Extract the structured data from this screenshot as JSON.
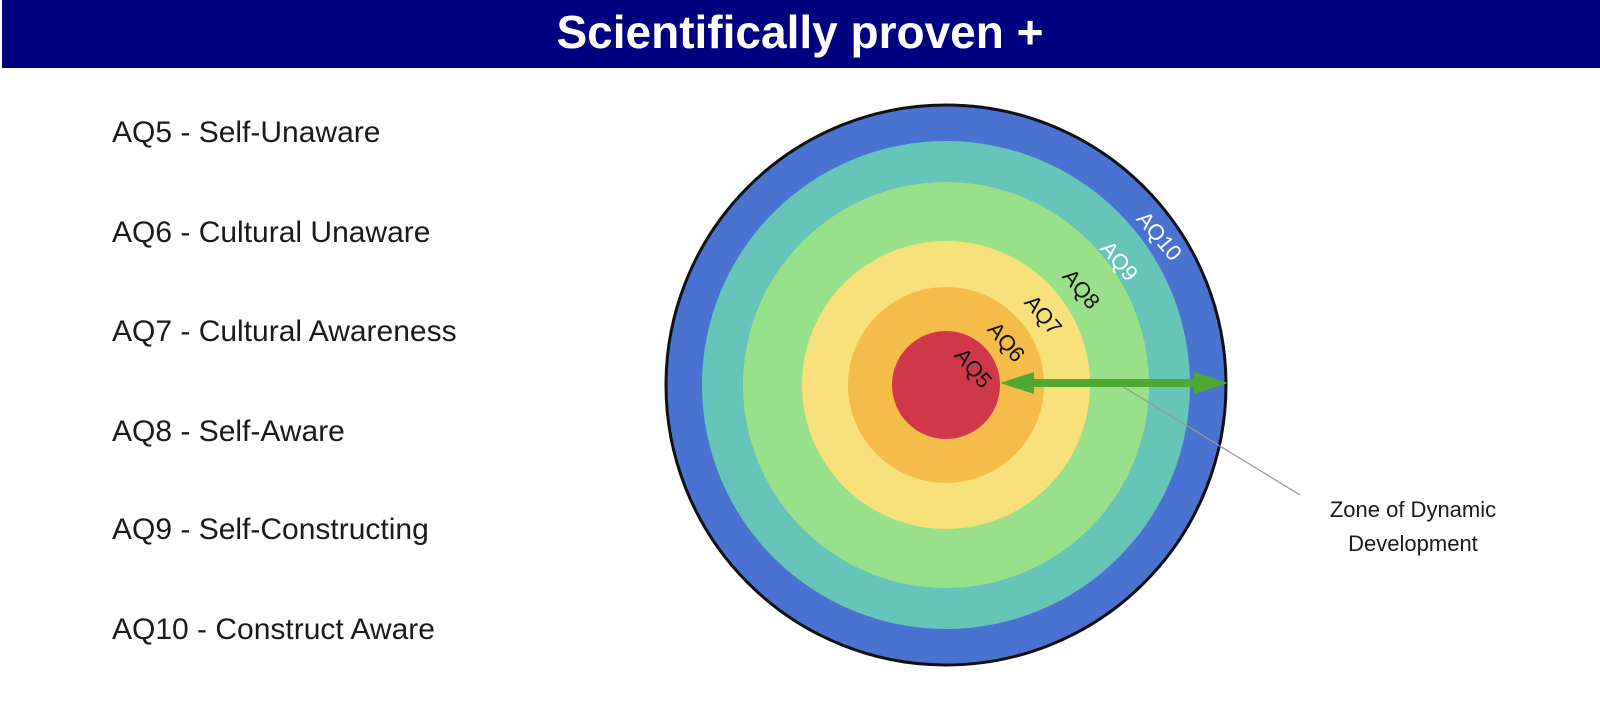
{
  "header": {
    "title": "Scientifically proven +"
  },
  "levels": [
    "AQ5 - Self-Unaware",
    "AQ6 - Cultural Unaware",
    "AQ7 - Cultural Awareness",
    "AQ8 - Self-Aware",
    "AQ9 - Self-Constructing",
    "AQ10 - Construct Aware"
  ],
  "rings": [
    "AQ10",
    "AQ9",
    "AQ8",
    "AQ7",
    "AQ6",
    "AQ5"
  ],
  "annotation": {
    "lines": [
      "Zone of Dynamic",
      "Development"
    ]
  }
}
